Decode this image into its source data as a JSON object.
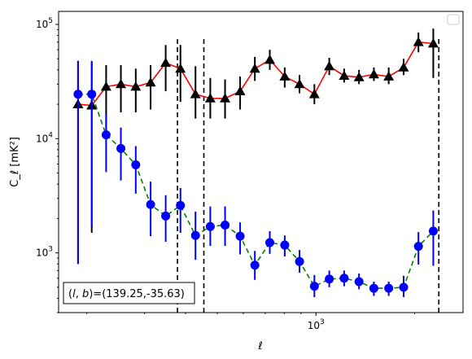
{
  "chart_data": {
    "type": "scatter",
    "xlabel": "ℓ",
    "ylabel": "C_ℓ [mK²]",
    "xscale": "log",
    "yscale": "log",
    "xlim": [
      164,
      2810
    ],
    "ylim": [
      300,
      130000
    ],
    "x_tick_labels": [
      {
        "base": "10",
        "exp": "3",
        "value": 1000
      }
    ],
    "y_tick_labels": [
      {
        "base": "10",
        "exp": "3",
        "value": 1000
      },
      {
        "base": "10",
        "exp": "4",
        "value": 10000
      },
      {
        "base": "10",
        "exp": "5",
        "value": 100000
      }
    ],
    "annotation": "(l, b)=(139.25,-35.63)",
    "annotation_parts": {
      "open": "(",
      "l": "l",
      "comma": ", ",
      "b": "b",
      "rest": ")=(139.25,-35.63)"
    },
    "legend": {
      "position": "top-right",
      "entries": []
    },
    "vlines": [
      378,
      455,
      2370
    ],
    "series": [
      {
        "color": "#ff0000",
        "marker": "triangle",
        "marker_color": "#000000",
        "errorbar_color": "#000000",
        "linestyle": "solid",
        "points": [
          {
            "x": 188,
            "y": 20000,
            "lo": 800,
            "hi": 48000
          },
          {
            "x": 207,
            "y": 19500,
            "lo": 1500,
            "hi": 47000
          },
          {
            "x": 229,
            "y": 28500,
            "lo": 11000,
            "hi": 44000
          },
          {
            "x": 254,
            "y": 30000,
            "lo": 17000,
            "hi": 44000
          },
          {
            "x": 282,
            "y": 28500,
            "lo": 17000,
            "hi": 41000
          },
          {
            "x": 313,
            "y": 31000,
            "lo": 18000,
            "hi": 44000
          },
          {
            "x": 348,
            "y": 46000,
            "lo": 26000,
            "hi": 66000
          },
          {
            "x": 386,
            "y": 41000,
            "lo": 21000,
            "hi": 66000
          },
          {
            "x": 429,
            "y": 24500,
            "lo": 15000,
            "hi": 43000
          },
          {
            "x": 476,
            "y": 22500,
            "lo": 15000,
            "hi": 34000
          },
          {
            "x": 528,
            "y": 22500,
            "lo": 15000,
            "hi": 33000
          },
          {
            "x": 587,
            "y": 26000,
            "lo": 18000,
            "hi": 35000
          },
          {
            "x": 651,
            "y": 41000,
            "lo": 32000,
            "hi": 52000
          },
          {
            "x": 723,
            "y": 49000,
            "lo": 40000,
            "hi": 60000
          },
          {
            "x": 803,
            "y": 35000,
            "lo": 28000,
            "hi": 42000
          },
          {
            "x": 891,
            "y": 30000,
            "lo": 25000,
            "hi": 36000
          },
          {
            "x": 989,
            "y": 24500,
            "lo": 20000,
            "hi": 30000
          },
          {
            "x": 1098,
            "y": 43000,
            "lo": 36000,
            "hi": 51000
          },
          {
            "x": 1219,
            "y": 35500,
            "lo": 31000,
            "hi": 41000
          },
          {
            "x": 1353,
            "y": 34500,
            "lo": 30000,
            "hi": 40000
          },
          {
            "x": 1502,
            "y": 36500,
            "lo": 32000,
            "hi": 42000
          },
          {
            "x": 1667,
            "y": 35000,
            "lo": 30000,
            "hi": 42000
          },
          {
            "x": 1851,
            "y": 42000,
            "lo": 36000,
            "hi": 50000
          },
          {
            "x": 2054,
            "y": 70000,
            "lo": 57000,
            "hi": 85000
          },
          {
            "x": 2280,
            "y": 68000,
            "lo": 34000,
            "hi": 92000
          }
        ]
      },
      {
        "color": "#008000",
        "marker": "circle",
        "marker_color": "#0000ff",
        "errorbar_color": "#0000ff",
        "linestyle": "dashed",
        "points": [
          {
            "x": 188,
            "y": 24500,
            "lo": 800,
            "hi": 48000
          },
          {
            "x": 207,
            "y": 24500,
            "lo": 1700,
            "hi": 48000
          },
          {
            "x": 229,
            "y": 10800,
            "lo": 5100,
            "hi": 16500
          },
          {
            "x": 254,
            "y": 8200,
            "lo": 4300,
            "hi": 12500
          },
          {
            "x": 282,
            "y": 5900,
            "lo": 3300,
            "hi": 8600
          },
          {
            "x": 313,
            "y": 2650,
            "lo": 1400,
            "hi": 4200
          },
          {
            "x": 348,
            "y": 2100,
            "lo": 1250,
            "hi": 3200
          },
          {
            "x": 386,
            "y": 2600,
            "lo": 1500,
            "hi": 3700
          },
          {
            "x": 429,
            "y": 1420,
            "lo": 870,
            "hi": 2300
          },
          {
            "x": 476,
            "y": 1700,
            "lo": 1150,
            "hi": 2550
          },
          {
            "x": 528,
            "y": 1750,
            "lo": 1150,
            "hi": 2550
          },
          {
            "x": 587,
            "y": 1400,
            "lo": 970,
            "hi": 1850
          },
          {
            "x": 651,
            "y": 780,
            "lo": 580,
            "hi": 1040
          },
          {
            "x": 723,
            "y": 1230,
            "lo": 980,
            "hi": 1550
          },
          {
            "x": 803,
            "y": 1170,
            "lo": 930,
            "hi": 1420
          },
          {
            "x": 891,
            "y": 840,
            "lo": 670,
            "hi": 1060
          },
          {
            "x": 989,
            "y": 510,
            "lo": 410,
            "hi": 640
          },
          {
            "x": 1098,
            "y": 590,
            "lo": 500,
            "hi": 700
          },
          {
            "x": 1219,
            "y": 600,
            "lo": 510,
            "hi": 700
          },
          {
            "x": 1353,
            "y": 560,
            "lo": 480,
            "hi": 660
          },
          {
            "x": 1502,
            "y": 490,
            "lo": 420,
            "hi": 560
          },
          {
            "x": 1667,
            "y": 490,
            "lo": 420,
            "hi": 560
          },
          {
            "x": 1851,
            "y": 500,
            "lo": 410,
            "hi": 630
          },
          {
            "x": 2054,
            "y": 1140,
            "lo": 790,
            "hi": 1520
          },
          {
            "x": 2280,
            "y": 1550,
            "lo": 770,
            "hi": 2350
          }
        ]
      }
    ]
  }
}
